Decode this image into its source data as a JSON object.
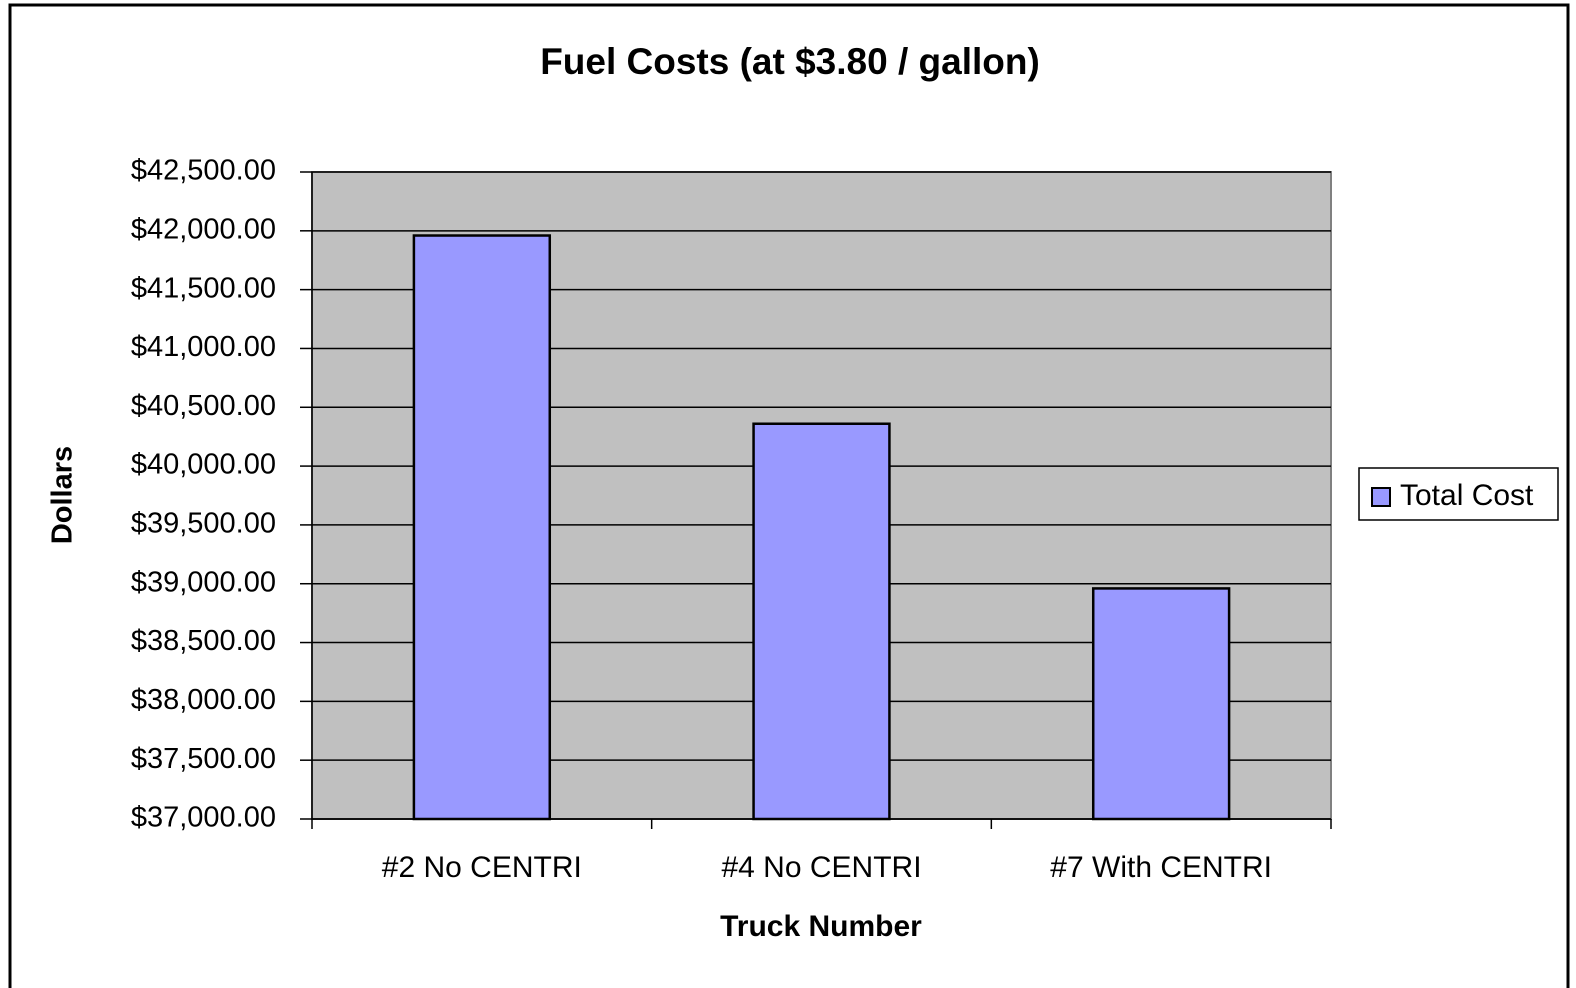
{
  "chart_data": {
    "type": "bar",
    "title": "Fuel Costs (at $3.80 / gallon)",
    "x_label": "Truck Number",
    "y_label": "Dollars",
    "categories": [
      "#2 No CENTRI",
      "#4 No CENTRI",
      "#7 With CENTRI"
    ],
    "series": [
      {
        "name": "Total Cost",
        "color": "#9999ff",
        "values": [
          41960,
          40360,
          38960
        ]
      }
    ],
    "ylim": [
      37000,
      42500
    ],
    "yticks": [
      {
        "value": 37000,
        "label": "$37,000.00"
      },
      {
        "value": 37500,
        "label": "$37,500.00"
      },
      {
        "value": 38000,
        "label": "$38,000.00"
      },
      {
        "value": 38500,
        "label": "$38,500.00"
      },
      {
        "value": 39000,
        "label": "$39,000.00"
      },
      {
        "value": 39500,
        "label": "$39,500.00"
      },
      {
        "value": 40000,
        "label": "$40,000.00"
      },
      {
        "value": 40500,
        "label": "$40,500.00"
      },
      {
        "value": 41000,
        "label": "$41,000.00"
      },
      {
        "value": 41500,
        "label": "$41,500.00"
      },
      {
        "value": 42000,
        "label": "$42,000.00"
      },
      {
        "value": 42500,
        "label": "$42,500.00"
      }
    ],
    "grid": true,
    "legend": "right",
    "plot_background": "#c0c0c0"
  }
}
